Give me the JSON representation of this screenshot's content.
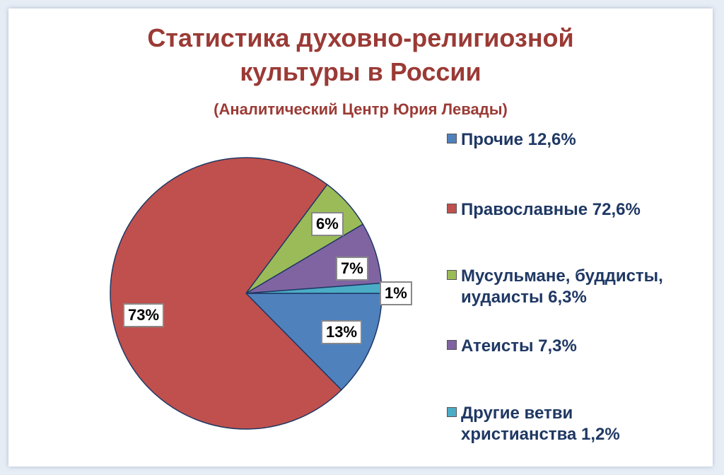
{
  "title_line1": "Статистика  духовно-религиозной",
  "title_line2": "культуры  в  России",
  "subtitle": "(Аналитический Центр Юрия Левады)",
  "chart_data": {
    "type": "pie",
    "title": "Статистика  духовно-религиозной культуры  в  России",
    "subtitle": "(Аналитический Центр Юрия Левады)",
    "legend_position": "right",
    "slices": [
      {
        "legend": "Прочие 12,6%",
        "value": 12.6,
        "label": "13%",
        "color": "#4f81bd"
      },
      {
        "legend": "Православные 72,6%",
        "value": 72.6,
        "label": "73%",
        "color": "#c0504d"
      },
      {
        "legend_line1": "Мусульмане, буддисты,",
        "legend_line2": "иудаисты 6,3%",
        "value": 6.3,
        "label": "6%",
        "color": "#9bbb59"
      },
      {
        "legend": "Атеисты 7,3%",
        "value": 7.3,
        "label": "7%",
        "color": "#8064a2"
      },
      {
        "legend_line1": "Другие ветви",
        "legend_line2": "христианства 1,2%",
        "value": 1.2,
        "label": "1%",
        "color": "#4bacc6"
      }
    ]
  }
}
